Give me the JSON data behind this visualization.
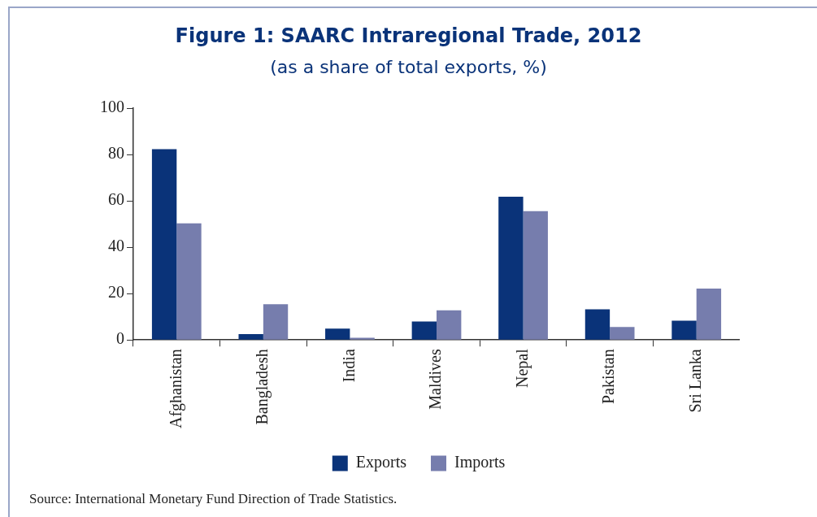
{
  "chart_data": {
    "type": "bar",
    "title": "Figure 1:  SAARC Intraregional Trade, 2012",
    "subtitle": "(as a share of total exports, %)",
    "categories": [
      "Afghanistan",
      "Bangladesh",
      "India",
      "Maldives",
      "Nepal",
      "Pakistan",
      "Sri Lanka"
    ],
    "series": [
      {
        "name": "Exports",
        "color": "#0a3379",
        "values": [
          82.3,
          2.5,
          4.9,
          8.0,
          61.8,
          13.2,
          8.3
        ]
      },
      {
        "name": "Imports",
        "color": "#767dad",
        "values": [
          50.3,
          15.4,
          1.0,
          12.8,
          55.6,
          5.6,
          22.2
        ]
      }
    ],
    "ylim": [
      0,
      100
    ],
    "yticks": [
      0,
      20,
      40,
      60,
      80,
      100
    ],
    "grid": false,
    "legend": "bottom",
    "annotations": [
      "Source: International Monetary Fund Direction of Trade Statistics."
    ]
  }
}
